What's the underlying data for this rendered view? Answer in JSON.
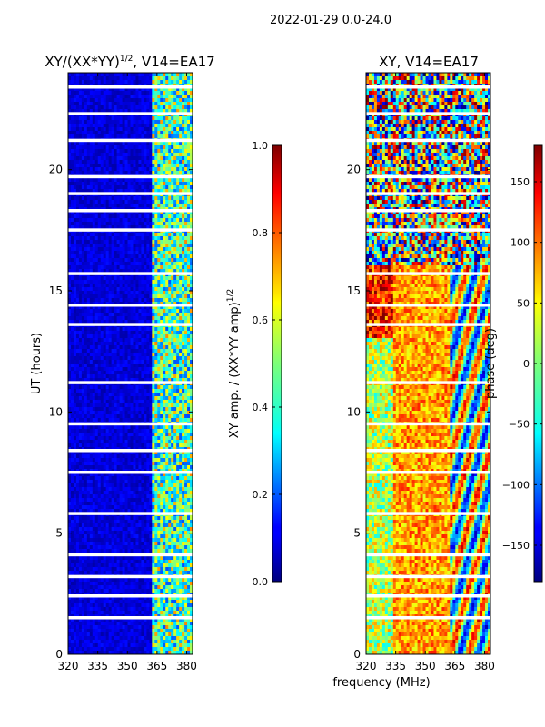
{
  "figure": {
    "suptitle": "2022-01-29 0.0-24.0"
  },
  "chart_data": [
    {
      "type": "heatmap",
      "title_main": "XY/(XX*YY)",
      "title_sup": "1/2",
      "title_rest": ", V14=EA17",
      "xlabel": "",
      "ylabel": "UT (hours)",
      "x_ticks": [
        "320",
        "335",
        "350",
        "365",
        "380"
      ],
      "x_tick_values": [
        320,
        335,
        350,
        365,
        380
      ],
      "y_ticks": [
        "0",
        "5",
        "10",
        "15",
        "20"
      ],
      "y_tick_values": [
        0,
        5,
        10,
        15,
        20
      ],
      "xlim": [
        320,
        383
      ],
      "ylim": [
        0,
        24
      ],
      "colorbar": {
        "label_main": "XY amp. / (XX*YY amp)",
        "label_sup": "1/2",
        "range": [
          0.0,
          1.0
        ],
        "ticks": [
          "0.0",
          "0.2",
          "0.4",
          "0.6",
          "0.8",
          "1.0"
        ],
        "tick_values": [
          0.0,
          0.2,
          0.4,
          0.6,
          0.8,
          1.0
        ]
      },
      "blank_ut_hours": [
        1.5,
        2.4,
        3.2,
        4.1,
        5.8,
        7.5,
        8.4,
        9.5,
        11.2,
        13.6,
        14.4,
        15.7,
        17.5,
        18.3,
        19.0,
        19.7,
        21.2,
        22.3,
        23.4
      ]
    },
    {
      "type": "heatmap",
      "title": "XY, V14=EA17",
      "xlabel": "frequency (MHz)",
      "ylabel": "",
      "x_ticks": [
        "320",
        "335",
        "350",
        "365",
        "380"
      ],
      "x_tick_values": [
        320,
        335,
        350,
        365,
        380
      ],
      "y_ticks": [
        "0",
        "5",
        "10",
        "15",
        "20"
      ],
      "y_tick_values": [
        0,
        5,
        10,
        15,
        20
      ],
      "xlim": [
        320,
        383
      ],
      "ylim": [
        0,
        24
      ],
      "colorbar": {
        "label": "phase (deg)",
        "range": [
          -180,
          180
        ],
        "ticks": [
          "150",
          "100",
          "50",
          "0",
          "−50",
          "−100",
          "−150"
        ],
        "tick_values": [
          150,
          100,
          50,
          0,
          -50,
          -100,
          -150
        ]
      },
      "blank_ut_hours": [
        1.5,
        2.4,
        3.2,
        4.1,
        5.8,
        7.5,
        8.4,
        9.5,
        11.2,
        13.6,
        14.4,
        15.7,
        17.5,
        18.3,
        19.0,
        19.7,
        21.2,
        22.3,
        23.4
      ]
    }
  ]
}
